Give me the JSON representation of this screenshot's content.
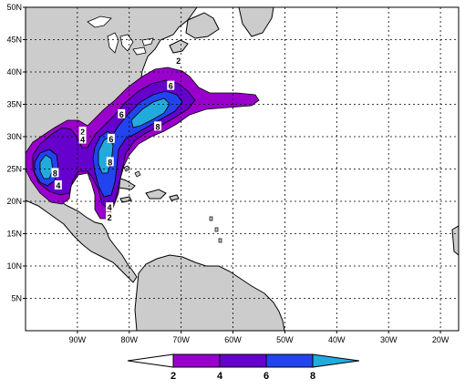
{
  "map": {
    "lon_range": [
      -100,
      -16.5
    ],
    "lat_range": [
      0,
      50
    ],
    "lat_ticks": [
      {
        "value": 50,
        "label": "50N"
      },
      {
        "value": 45,
        "label": "45N"
      },
      {
        "value": 40,
        "label": "40N"
      },
      {
        "value": 35,
        "label": "35N"
      },
      {
        "value": 30,
        "label": "30N"
      },
      {
        "value": 25,
        "label": "25N"
      },
      {
        "value": 20,
        "label": "20N"
      },
      {
        "value": 15,
        "label": "15N"
      },
      {
        "value": 10,
        "label": "10N"
      },
      {
        "value": 5,
        "label": "5N"
      }
    ],
    "lon_ticks": [
      {
        "value": -90,
        "label": "90W"
      },
      {
        "value": -80,
        "label": "80W"
      },
      {
        "value": -70,
        "label": "70W"
      },
      {
        "value": -60,
        "label": "60W"
      },
      {
        "value": -50,
        "label": "50W"
      },
      {
        "value": -40,
        "label": "40W"
      },
      {
        "value": -30,
        "label": "30W"
      },
      {
        "value": -20,
        "label": "20W"
      }
    ],
    "colors": {
      "land": "#cccccc",
      "ocean": "#ffffff",
      "grid": "#000000",
      "level_2": "#9900cc",
      "level_4": "#6600cc",
      "level_6": "#2244ee",
      "level_8": "#22aadd"
    },
    "contour_labels": [
      {
        "text": "2",
        "lon": -70.5,
        "lat": 41.7
      },
      {
        "text": "6",
        "lon": -72.0,
        "lat": 37.8
      },
      {
        "text": "6",
        "lon": -81.5,
        "lat": 33.4
      },
      {
        "text": "8",
        "lon": -74.5,
        "lat": 31.5
      },
      {
        "text": "2",
        "lon": -89.0,
        "lat": 30.7
      },
      {
        "text": "4",
        "lon": -89.0,
        "lat": 29.5
      },
      {
        "text": "6",
        "lon": -83.5,
        "lat": 29.6
      },
      {
        "text": "8",
        "lon": -83.7,
        "lat": 26.0
      },
      {
        "text": "8",
        "lon": -94.3,
        "lat": 24.3
      },
      {
        "text": "4",
        "lon": -93.7,
        "lat": 22.4
      },
      {
        "text": "4",
        "lon": -83.8,
        "lat": 19.0
      },
      {
        "text": "2",
        "lon": -83.8,
        "lat": 17.5
      }
    ]
  },
  "colorbar": {
    "labels": [
      "2",
      "4",
      "6",
      "8"
    ],
    "colors": [
      "#9900cc",
      "#6600cc",
      "#2244ee",
      "#22aadd"
    ]
  }
}
